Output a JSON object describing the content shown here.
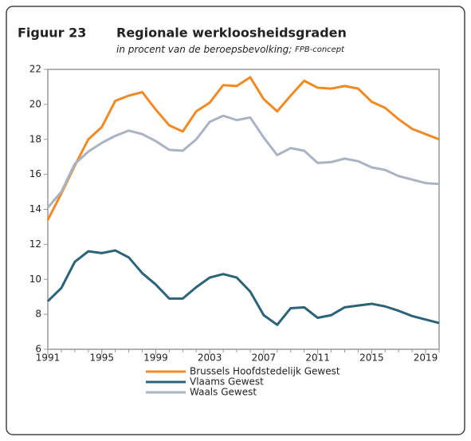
{
  "chart_data": {
    "type": "line",
    "figure_label": "Figuur 23",
    "title": "Regionale werkloosheidsgraden",
    "subtitle": "in procent van de beroepsbevolking;",
    "subtitle_note": "FPB-concept",
    "x": [
      1991,
      1992,
      1993,
      1994,
      1995,
      1996,
      1997,
      1998,
      1999,
      2000,
      2001,
      2002,
      2003,
      2004,
      2005,
      2006,
      2007,
      2008,
      2009,
      2010,
      2011,
      2012,
      2013,
      2014,
      2015,
      2016,
      2017,
      2018,
      2019,
      2020
    ],
    "series": [
      {
        "name": "Brussels Hoofdstedelijk Gewest",
        "color": "#f08a24",
        "values": [
          13.4,
          14.9,
          16.5,
          18.0,
          18.7,
          20.2,
          20.5,
          20.7,
          19.7,
          18.8,
          18.45,
          19.6,
          20.1,
          21.1,
          21.05,
          21.55,
          20.3,
          19.6,
          20.5,
          21.35,
          20.95,
          20.9,
          21.05,
          20.9,
          20.15,
          19.8,
          19.15,
          18.6,
          18.3,
          18.0
        ]
      },
      {
        "name": "Vlaams Gewest",
        "color": "#2b6478",
        "values": [
          8.75,
          9.5,
          11.0,
          11.6,
          11.5,
          11.65,
          11.25,
          10.35,
          9.7,
          8.9,
          8.9,
          9.55,
          10.1,
          10.3,
          10.1,
          9.3,
          7.95,
          7.4,
          8.35,
          8.4,
          7.8,
          7.95,
          8.4,
          8.5,
          8.6,
          8.45,
          8.2,
          7.9,
          7.7,
          7.5
        ]
      },
      {
        "name": "Waals Gewest",
        "color": "#aab3c2",
        "values": [
          14.1,
          15.0,
          16.6,
          17.3,
          17.8,
          18.2,
          18.5,
          18.3,
          17.9,
          17.4,
          17.35,
          18.0,
          19.0,
          19.35,
          19.1,
          19.25,
          18.1,
          17.1,
          17.5,
          17.35,
          16.65,
          16.7,
          16.9,
          16.75,
          16.4,
          16.25,
          15.9,
          15.7,
          15.5,
          15.45
        ]
      }
    ],
    "xlim": [
      1991,
      2020
    ],
    "xticks": [
      1991,
      1995,
      1999,
      2003,
      2007,
      2011,
      2015,
      2019
    ],
    "ylim": [
      6,
      22
    ],
    "yticks": [
      6,
      8,
      10,
      12,
      14,
      16,
      18,
      20,
      22
    ],
    "grid": false,
    "legend": "bottom"
  }
}
